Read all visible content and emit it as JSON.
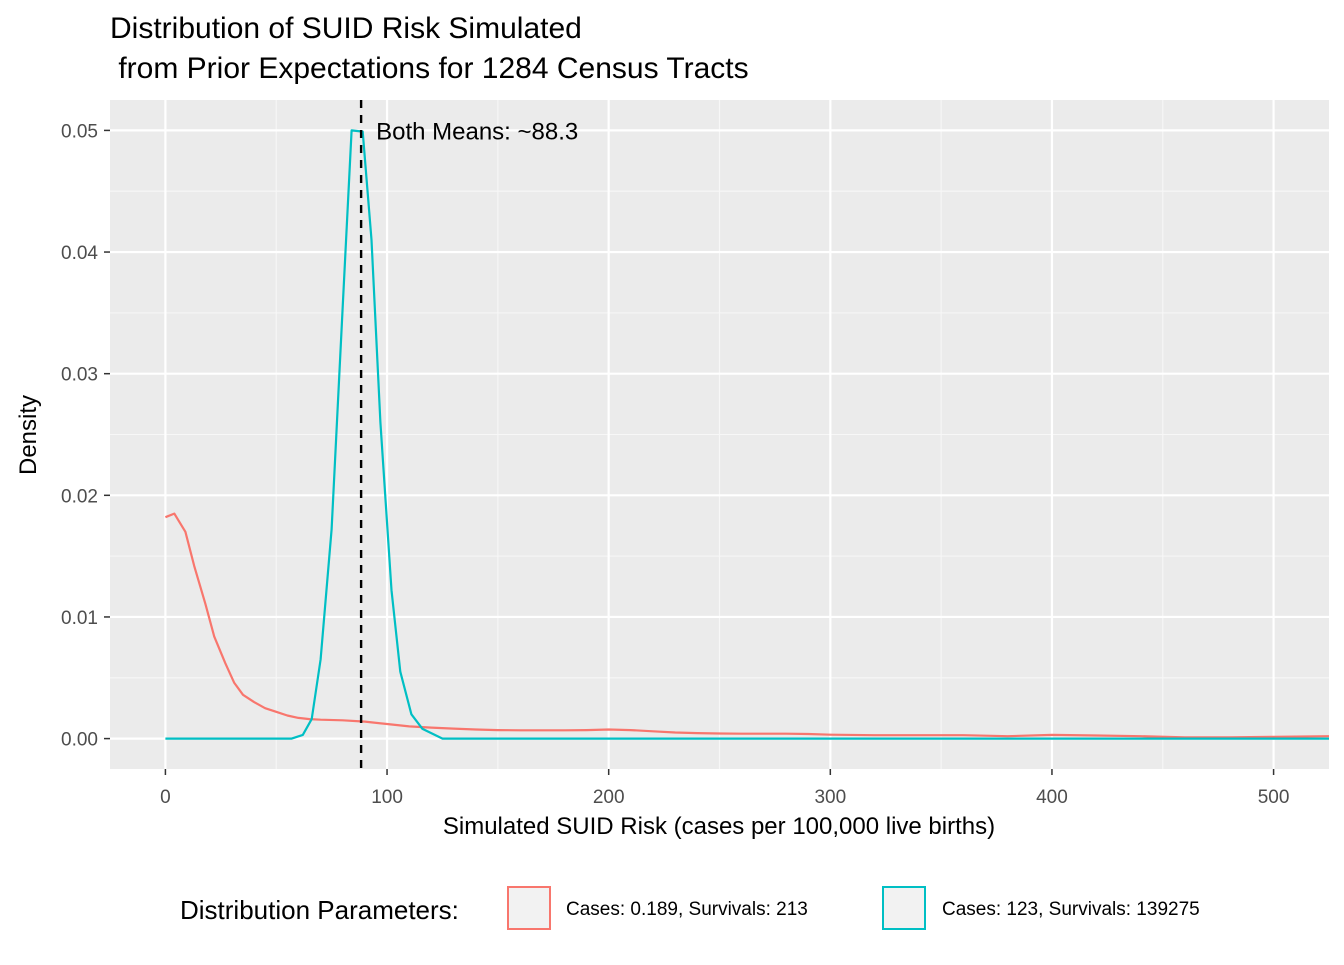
{
  "chart_data": {
    "type": "line",
    "title_line1": "Distribution of SUID Risk Simulated",
    "title_line2": " from Prior Expectations for 1284 Census Tracts",
    "xlabel": "Simulated SUID Risk (cases per 100,000 live births)",
    "ylabel": "Density",
    "xlim": [
      -25,
      525
    ],
    "ylim": [
      -0.0025,
      0.0525
    ],
    "x_ticks": [
      0,
      100,
      200,
      300,
      400,
      500
    ],
    "y_ticks": [
      0.0,
      0.01,
      0.02,
      0.03,
      0.04,
      0.05
    ],
    "y_tick_labels": [
      "0.00",
      "0.01",
      "0.02",
      "0.03",
      "0.04",
      "0.05"
    ],
    "grid": true,
    "legend_position": "bottom",
    "legend_title": "Distribution Parameters:",
    "annotation": {
      "text": "Both Means: ~88.3",
      "x": 88.3
    },
    "series": [
      {
        "name": "Cases: 0.189, Survivals: 213",
        "color": "#F8766D",
        "x": [
          0,
          4,
          9,
          13,
          18,
          22,
          27,
          31,
          35,
          40,
          45,
          50,
          55,
          60,
          65,
          70,
          80,
          90,
          100,
          110,
          120,
          130,
          140,
          150,
          160,
          170,
          180,
          190,
          200,
          210,
          220,
          230,
          240,
          250,
          260,
          270,
          280,
          290,
          300,
          320,
          340,
          360,
          380,
          400,
          420,
          440,
          460,
          480,
          500,
          525
        ],
        "y": [
          0.0182,
          0.0185,
          0.017,
          0.0142,
          0.0111,
          0.0084,
          0.0062,
          0.0046,
          0.0036,
          0.003,
          0.0025,
          0.0022,
          0.0019,
          0.0017,
          0.0016,
          0.00155,
          0.0015,
          0.0014,
          0.0012,
          0.001,
          0.0009,
          0.00082,
          0.00075,
          0.0007,
          0.00068,
          0.00068,
          0.00068,
          0.0007,
          0.00075,
          0.0007,
          0.0006,
          0.0005,
          0.00045,
          0.00042,
          0.0004,
          0.0004,
          0.0004,
          0.00038,
          0.00032,
          0.00028,
          0.00028,
          0.00028,
          0.0002,
          0.0003,
          0.00025,
          0.0002,
          0.0001,
          0.0001,
          0.00015,
          0.0002
        ]
      },
      {
        "name": "Cases: 123, Survivals: 139275",
        "color": "#00BFC4",
        "x": [
          0,
          57,
          62,
          66,
          70,
          75,
          80,
          84,
          89,
          93,
          97,
          102,
          106,
          111,
          116,
          125,
          200,
          300,
          400,
          525
        ],
        "y": [
          0.0,
          0.0,
          0.0003,
          0.0016,
          0.0065,
          0.0172,
          0.0355,
          0.05,
          0.0499,
          0.041,
          0.026,
          0.0122,
          0.0055,
          0.002,
          0.0008,
          0.0,
          0.0,
          0.0,
          0.0,
          0.0
        ]
      }
    ]
  }
}
